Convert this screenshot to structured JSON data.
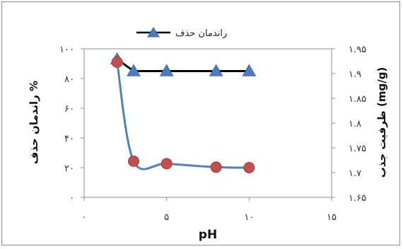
{
  "chart_data": {
    "type": "line",
    "title": "",
    "xlabel": "pH",
    "ylabel_left": "راندمان حذف %",
    "ylabel_right": "ظرفیت جذب (mg/g)",
    "x_ticks": [
      "۰",
      "۵",
      "۱۰",
      "۱۵"
    ],
    "x_tick_values": [
      0,
      5,
      10,
      15
    ],
    "xlim": [
      0,
      15
    ],
    "y_left_ticks": [
      "۰",
      "۲۰",
      "۴۰",
      "۶۰",
      "۸۰",
      "۱۰۰"
    ],
    "y_left_tick_values": [
      0,
      20,
      40,
      60,
      80,
      100
    ],
    "ylim_left": [
      0,
      100
    ],
    "y_right_ticks": [
      "۱.۶۵",
      "۱.۷",
      "۱.۷۵",
      "۱.۸",
      "۱.۸۵",
      "۱.۹",
      "۱.۹۵"
    ],
    "y_right_tick_values": [
      1.65,
      1.7,
      1.75,
      1.8,
      1.85,
      1.9,
      1.95
    ],
    "ylim_right": [
      1.65,
      1.95
    ],
    "legend_position": "top",
    "grid": false,
    "series": [
      {
        "name": "راندمان حذف",
        "axis": "left",
        "marker": "triangle",
        "line_color": "#000000",
        "marker_color": "#4a7ebb",
        "x": [
          2,
          3,
          5,
          8,
          10
        ],
        "y": [
          93,
          85,
          85,
          85,
          85
        ]
      },
      {
        "name": "",
        "axis": "right",
        "marker": "circle",
        "line_color": "#4f81bd",
        "marker_color": "#c0504d",
        "x": [
          2,
          3,
          5,
          8,
          10
        ],
        "y": [
          1.923,
          1.723,
          1.718,
          1.711,
          1.71
        ]
      }
    ]
  }
}
